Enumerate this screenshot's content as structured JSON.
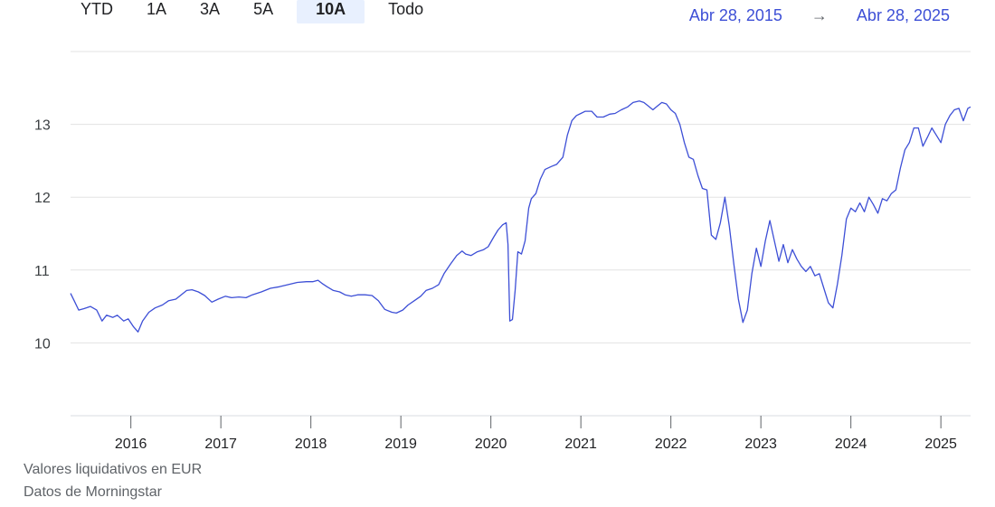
{
  "range_buttons": [
    {
      "label": "YTD",
      "active": false
    },
    {
      "label": "1A",
      "active": false
    },
    {
      "label": "3A",
      "active": false
    },
    {
      "label": "5A",
      "active": false
    },
    {
      "label": "10A",
      "active": true
    },
    {
      "label": "Todo",
      "active": false
    }
  ],
  "date_range": {
    "start": "Abr 28, 2015",
    "arrow": "→",
    "end": "Abr 28, 2025"
  },
  "footnotes": {
    "currency": "Valores liquidativos en EUR",
    "source": "Datos de Morningstar"
  },
  "colors": {
    "line": "#3d4fd6",
    "grid": "#e3e3e3",
    "axis": "#dadce0",
    "date_link": "#3d4fd6",
    "active_bg": "#e8f0fe"
  },
  "chart_data": {
    "type": "line",
    "title": "",
    "xlabel": "",
    "ylabel": "",
    "xlim": [
      2015.33,
      2025.33
    ],
    "ylim": [
      9.0,
      14.0
    ],
    "x_ticks": [
      2016,
      2017,
      2018,
      2019,
      2020,
      2021,
      2022,
      2023,
      2024,
      2025
    ],
    "y_ticks": [
      10,
      11,
      12,
      13
    ],
    "grid": true,
    "series": [
      {
        "points": [
          [
            2015.33,
            10.68
          ],
          [
            2015.37,
            10.58
          ],
          [
            2015.42,
            10.45
          ],
          [
            2015.48,
            10.47
          ],
          [
            2015.55,
            10.5
          ],
          [
            2015.62,
            10.45
          ],
          [
            2015.68,
            10.3
          ],
          [
            2015.73,
            10.38
          ],
          [
            2015.8,
            10.35
          ],
          [
            2015.85,
            10.38
          ],
          [
            2015.92,
            10.3
          ],
          [
            2015.97,
            10.33
          ],
          [
            2016.03,
            10.22
          ],
          [
            2016.08,
            10.15
          ],
          [
            2016.13,
            10.3
          ],
          [
            2016.2,
            10.42
          ],
          [
            2016.27,
            10.48
          ],
          [
            2016.35,
            10.52
          ],
          [
            2016.42,
            10.58
          ],
          [
            2016.5,
            10.6
          ],
          [
            2016.55,
            10.65
          ],
          [
            2016.62,
            10.72
          ],
          [
            2016.68,
            10.73
          ],
          [
            2016.75,
            10.7
          ],
          [
            2016.82,
            10.65
          ],
          [
            2016.9,
            10.56
          ],
          [
            2016.97,
            10.6
          ],
          [
            2017.05,
            10.64
          ],
          [
            2017.12,
            10.62
          ],
          [
            2017.2,
            10.63
          ],
          [
            2017.28,
            10.62
          ],
          [
            2017.35,
            10.66
          ],
          [
            2017.45,
            10.7
          ],
          [
            2017.55,
            10.75
          ],
          [
            2017.65,
            10.77
          ],
          [
            2017.75,
            10.8
          ],
          [
            2017.85,
            10.83
          ],
          [
            2017.95,
            10.84
          ],
          [
            2018.02,
            10.84
          ],
          [
            2018.08,
            10.86
          ],
          [
            2018.12,
            10.82
          ],
          [
            2018.18,
            10.77
          ],
          [
            2018.25,
            10.72
          ],
          [
            2018.32,
            10.7
          ],
          [
            2018.38,
            10.66
          ],
          [
            2018.45,
            10.64
          ],
          [
            2018.52,
            10.66
          ],
          [
            2018.6,
            10.66
          ],
          [
            2018.68,
            10.65
          ],
          [
            2018.75,
            10.58
          ],
          [
            2018.82,
            10.46
          ],
          [
            2018.9,
            10.42
          ],
          [
            2018.95,
            10.41
          ],
          [
            2019.02,
            10.45
          ],
          [
            2019.08,
            10.52
          ],
          [
            2019.15,
            10.58
          ],
          [
            2019.22,
            10.64
          ],
          [
            2019.28,
            10.72
          ],
          [
            2019.35,
            10.75
          ],
          [
            2019.42,
            10.8
          ],
          [
            2019.48,
            10.95
          ],
          [
            2019.55,
            11.08
          ],
          [
            2019.62,
            11.2
          ],
          [
            2019.68,
            11.26
          ],
          [
            2019.72,
            11.22
          ],
          [
            2019.78,
            11.2
          ],
          [
            2019.85,
            11.25
          ],
          [
            2019.92,
            11.28
          ],
          [
            2019.97,
            11.32
          ],
          [
            2020.03,
            11.45
          ],
          [
            2020.08,
            11.55
          ],
          [
            2020.13,
            11.62
          ],
          [
            2020.17,
            11.65
          ],
          [
            2020.19,
            11.35
          ],
          [
            2020.21,
            10.3
          ],
          [
            2020.24,
            10.32
          ],
          [
            2020.27,
            10.72
          ],
          [
            2020.3,
            11.25
          ],
          [
            2020.34,
            11.22
          ],
          [
            2020.38,
            11.4
          ],
          [
            2020.42,
            11.85
          ],
          [
            2020.45,
            11.98
          ],
          [
            2020.5,
            12.05
          ],
          [
            2020.55,
            12.25
          ],
          [
            2020.6,
            12.38
          ],
          [
            2020.67,
            12.42
          ],
          [
            2020.73,
            12.45
          ],
          [
            2020.8,
            12.55
          ],
          [
            2020.85,
            12.85
          ],
          [
            2020.9,
            13.05
          ],
          [
            2020.95,
            13.12
          ],
          [
            2021.0,
            13.15
          ],
          [
            2021.05,
            13.18
          ],
          [
            2021.12,
            13.18
          ],
          [
            2021.18,
            13.1
          ],
          [
            2021.25,
            13.1
          ],
          [
            2021.32,
            13.14
          ],
          [
            2021.38,
            13.15
          ],
          [
            2021.45,
            13.2
          ],
          [
            2021.52,
            13.24
          ],
          [
            2021.58,
            13.3
          ],
          [
            2021.65,
            13.32
          ],
          [
            2021.7,
            13.3
          ],
          [
            2021.75,
            13.25
          ],
          [
            2021.8,
            13.2
          ],
          [
            2021.85,
            13.25
          ],
          [
            2021.9,
            13.3
          ],
          [
            2021.95,
            13.28
          ],
          [
            2022.0,
            13.2
          ],
          [
            2022.05,
            13.15
          ],
          [
            2022.1,
            13.0
          ],
          [
            2022.15,
            12.75
          ],
          [
            2022.2,
            12.55
          ],
          [
            2022.25,
            12.52
          ],
          [
            2022.3,
            12.3
          ],
          [
            2022.35,
            12.12
          ],
          [
            2022.4,
            12.1
          ],
          [
            2022.45,
            11.48
          ],
          [
            2022.5,
            11.42
          ],
          [
            2022.55,
            11.65
          ],
          [
            2022.6,
            12.0
          ],
          [
            2022.65,
            11.6
          ],
          [
            2022.7,
            11.08
          ],
          [
            2022.75,
            10.6
          ],
          [
            2022.8,
            10.28
          ],
          [
            2022.85,
            10.45
          ],
          [
            2022.9,
            10.95
          ],
          [
            2022.95,
            11.3
          ],
          [
            2023.0,
            11.05
          ],
          [
            2023.05,
            11.4
          ],
          [
            2023.1,
            11.68
          ],
          [
            2023.15,
            11.4
          ],
          [
            2023.2,
            11.12
          ],
          [
            2023.25,
            11.35
          ],
          [
            2023.3,
            11.1
          ],
          [
            2023.35,
            11.28
          ],
          [
            2023.4,
            11.15
          ],
          [
            2023.45,
            11.05
          ],
          [
            2023.5,
            10.98
          ],
          [
            2023.55,
            11.05
          ],
          [
            2023.6,
            10.92
          ],
          [
            2023.65,
            10.95
          ],
          [
            2023.7,
            10.75
          ],
          [
            2023.75,
            10.55
          ],
          [
            2023.8,
            10.48
          ],
          [
            2023.85,
            10.8
          ],
          [
            2023.9,
            11.2
          ],
          [
            2023.95,
            11.7
          ],
          [
            2024.0,
            11.85
          ],
          [
            2024.05,
            11.8
          ],
          [
            2024.1,
            11.92
          ],
          [
            2024.15,
            11.8
          ],
          [
            2024.2,
            12.0
          ],
          [
            2024.25,
            11.9
          ],
          [
            2024.3,
            11.78
          ],
          [
            2024.35,
            11.98
          ],
          [
            2024.4,
            11.95
          ],
          [
            2024.45,
            12.05
          ],
          [
            2024.5,
            12.1
          ],
          [
            2024.55,
            12.4
          ],
          [
            2024.6,
            12.65
          ],
          [
            2024.65,
            12.75
          ],
          [
            2024.7,
            12.95
          ],
          [
            2024.75,
            12.95
          ],
          [
            2024.8,
            12.7
          ],
          [
            2024.85,
            12.82
          ],
          [
            2024.9,
            12.95
          ],
          [
            2024.95,
            12.85
          ],
          [
            2025.0,
            12.75
          ],
          [
            2025.05,
            13.0
          ],
          [
            2025.1,
            13.12
          ],
          [
            2025.15,
            13.2
          ],
          [
            2025.2,
            13.22
          ],
          [
            2025.25,
            13.05
          ],
          [
            2025.3,
            13.22
          ],
          [
            2025.33,
            13.24
          ]
        ]
      }
    ]
  }
}
